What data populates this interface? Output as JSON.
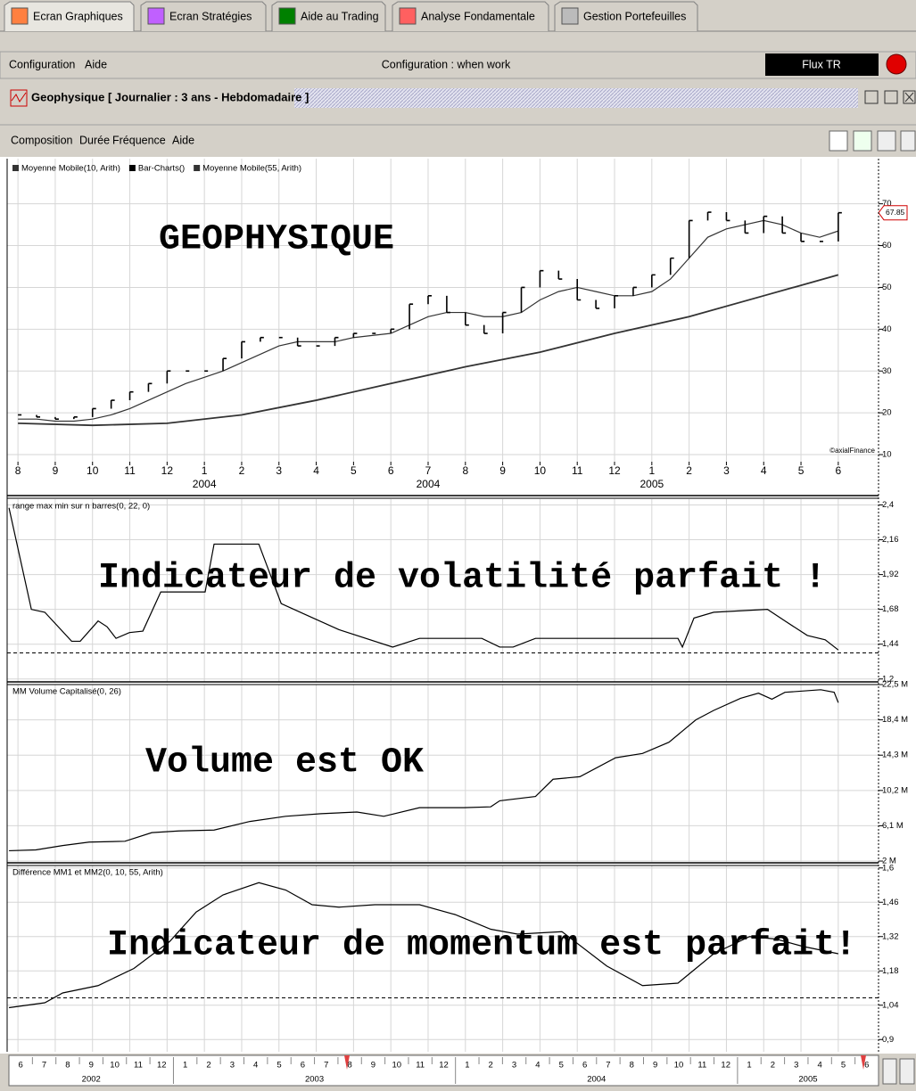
{
  "tabs": [
    "Ecran Graphiques",
    "Ecran Stratégies",
    "Aide au Trading",
    "Analyse Fondamentale",
    "Gestion Portefeuilles"
  ],
  "menu": {
    "items": [
      "Configuration",
      "Aide"
    ],
    "status": "Configuration : when work",
    "feed": "Flux TR"
  },
  "window": {
    "title": "Geophysique  [ Journalier : 3 ans - Hebdomadaire ]"
  },
  "submenu": [
    "Composition",
    "Durée",
    "Fréquence",
    "Aide"
  ],
  "chart_data": [
    {
      "type": "line",
      "annotation": "GEOPHYSIQUE",
      "credit": "©axialFinance",
      "last_price": 67.85,
      "xlim": [
        -0.29,
        23.08
      ],
      "xticks": [
        {
          "value": 0,
          "label": "8"
        },
        {
          "value": 1,
          "label": "9"
        },
        {
          "value": 2,
          "label": "10"
        },
        {
          "value": 3,
          "label": "11"
        },
        {
          "value": 4,
          "label": "12"
        },
        {
          "value": 5,
          "label": "1"
        },
        {
          "value": 6,
          "label": "2"
        },
        {
          "value": 7,
          "label": "3"
        },
        {
          "value": 8,
          "label": "4"
        },
        {
          "value": 9,
          "label": "5"
        },
        {
          "value": 10,
          "label": "6"
        },
        {
          "value": 11,
          "label": "7"
        },
        {
          "value": 12,
          "label": "8"
        },
        {
          "value": 13,
          "label": "9"
        },
        {
          "value": 14,
          "label": "10"
        },
        {
          "value": 15,
          "label": "11"
        },
        {
          "value": 16,
          "label": "12"
        },
        {
          "value": 17,
          "label": "1"
        },
        {
          "value": 18,
          "label": "2"
        },
        {
          "value": 19,
          "label": "3"
        },
        {
          "value": 20,
          "label": "4"
        },
        {
          "value": 21,
          "label": "5"
        },
        {
          "value": 22,
          "label": "6"
        }
      ],
      "x_year_labels": [
        {
          "value": 5,
          "label": "2004"
        },
        {
          "value": 11,
          "label": "2004"
        },
        {
          "value": 17,
          "label": "2005"
        }
      ],
      "ylim": [
        8.3,
        80.8
      ],
      "yticks": [
        10,
        20,
        30,
        40,
        50,
        60,
        70
      ],
      "grid": true,
      "series": [
        {
          "name": "Moyenne Mobile(10, Arith)",
          "color": "#333333",
          "x": [
            0,
            0.5,
            1,
            1.5,
            2,
            2.5,
            3,
            3.5,
            4,
            4.5,
            5,
            5.5,
            6,
            6.5,
            7,
            7.5,
            8,
            8.5,
            9,
            9.5,
            10,
            10.5,
            11,
            11.5,
            12,
            12.5,
            13,
            13.5,
            14,
            14.5,
            15,
            15.5,
            16,
            16.5,
            17,
            17.5,
            18,
            18.5,
            19,
            19.5,
            20,
            20.5,
            21,
            21.5,
            22
          ],
          "values": [
            18.5,
            18.5,
            18,
            18,
            18.5,
            19.5,
            21,
            23,
            25,
            27,
            28.5,
            30,
            32,
            34,
            36,
            37,
            37,
            37,
            38,
            38.5,
            39,
            41,
            43,
            44,
            44,
            43,
            43,
            44,
            47,
            49,
            50,
            49,
            48,
            48,
            49,
            52,
            57,
            62,
            64,
            65,
            66,
            65,
            63,
            62,
            63.5
          ]
        },
        {
          "name": "Bar-Charts()",
          "color": "#000000",
          "kind": "bars",
          "x": [
            0,
            0.5,
            1,
            1.5,
            2,
            2.5,
            3,
            3.5,
            4,
            4.5,
            5,
            5.5,
            6,
            6.5,
            7,
            7.5,
            8,
            8.5,
            9,
            9.5,
            10,
            10.5,
            11,
            11.5,
            12,
            12.5,
            13,
            13.5,
            14,
            14.5,
            15,
            15.5,
            16,
            16.5,
            17,
            17.5,
            18,
            18.5,
            19,
            19.5,
            20,
            20.5,
            21,
            21.5,
            22
          ],
          "values": [
            19.5,
            19,
            18.5,
            19,
            21,
            23,
            25,
            27,
            30,
            30,
            30,
            33,
            37,
            38,
            38,
            36,
            36,
            38,
            39,
            39,
            40,
            46,
            48,
            44,
            41,
            39,
            44,
            50,
            54,
            52,
            47,
            45,
            48,
            50,
            53,
            57,
            66,
            68,
            66,
            63,
            67,
            63,
            61,
            61,
            67.85
          ]
        },
        {
          "name": "Moyenne Mobile(55, Arith)",
          "color": "#333333",
          "x": [
            0,
            2,
            4,
            6,
            8,
            10,
            12,
            14,
            16,
            18,
            20,
            22
          ],
          "values": [
            17.5,
            17,
            17.5,
            19.5,
            23,
            27,
            31,
            34.5,
            39,
            43,
            48,
            53
          ]
        }
      ]
    },
    {
      "type": "line",
      "title": "range max min sur n barres(0, 22, 0)",
      "annotation": "Indicateur de volatilité parfait !",
      "xlim": [
        -0.29,
        23.08
      ],
      "ylim": [
        1.18,
        2.44
      ],
      "yticks": [
        {
          "value": 2.4,
          "label": "2,4"
        },
        {
          "value": 2.16,
          "label": "2,16"
        },
        {
          "value": 1.92,
          "label": "1,92"
        },
        {
          "value": 1.68,
          "label": "1,68"
        },
        {
          "value": 1.44,
          "label": "1,44"
        },
        {
          "value": 1.2,
          "label": "1,2"
        }
      ],
      "grid": true,
      "reference": 1.38,
      "series": [
        {
          "color": "#000000",
          "x": [
            -0.24,
            0.36,
            0.72,
            1.44,
            1.67,
            2.15,
            2.39,
            2.63,
            2.99,
            3.35,
            3.83,
            5.02,
            5.26,
            6.46,
            7.06,
            7.66,
            8.61,
            10.05,
            10.77,
            12.44,
            12.92,
            13.28,
            13.88,
            17.7,
            17.82,
            18.13,
            18.66,
            20.1,
            20.57,
            21.17,
            21.65,
            22
          ],
          "values": [
            2.38,
            1.68,
            1.66,
            1.46,
            1.46,
            1.6,
            1.56,
            1.48,
            1.52,
            1.53,
            1.8,
            1.8,
            2.13,
            2.13,
            1.72,
            1.65,
            1.54,
            1.42,
            1.48,
            1.48,
            1.42,
            1.42,
            1.48,
            1.48,
            1.42,
            1.62,
            1.66,
            1.68,
            1.6,
            1.5,
            1.47,
            1.4
          ]
        }
      ]
    },
    {
      "type": "line",
      "title": "MM Volume Capitalisé(0, 26)",
      "annotation": "Volume est OK",
      "xlim": [
        -0.29,
        23.08
      ],
      "ylim": [
        1.9,
        22.5
      ],
      "yticks": [
        {
          "value": 22.5,
          "label": "22,5 M"
        },
        {
          "value": 18.4,
          "label": "18,4 M"
        },
        {
          "value": 14.3,
          "label": "14,3 M"
        },
        {
          "value": 10.2,
          "label": "10,2 M"
        },
        {
          "value": 6.1,
          "label": "6,1 M"
        },
        {
          "value": 2,
          "label": "2 M"
        }
      ],
      "grid": true,
      "series": [
        {
          "color": "#000000",
          "x": [
            -0.24,
            0.48,
            1.2,
            1.91,
            2.87,
            3.59,
            4.31,
            5.26,
            6.22,
            7.18,
            8.13,
            9.09,
            9.81,
            10.77,
            11.96,
            12.68,
            12.92,
            13.88,
            14.35,
            15.07,
            16.03,
            16.75,
            17.46,
            18.18,
            18.66,
            19.38,
            19.86,
            20.22,
            20.57,
            21.53,
            21.89,
            22
          ],
          "values": [
            3.2,
            3.3,
            3.8,
            4.2,
            4.3,
            5.3,
            5.5,
            5.6,
            6.6,
            7.2,
            7.5,
            7.7,
            7.2,
            8.2,
            8.2,
            8.3,
            9,
            9.5,
            11.5,
            11.8,
            14,
            14.5,
            15.8,
            18.4,
            19.5,
            20.9,
            21.5,
            20.8,
            21.6,
            21.9,
            21.6,
            20.4
          ]
        }
      ]
    },
    {
      "type": "line",
      "title": "Différence MM1 et MM2(0, 10, 55, Arith)",
      "annotation": "Indicateur de momentum est parfait!",
      "xlim": [
        -0.29,
        23.08
      ],
      "ylim": [
        0.85,
        1.61
      ],
      "yticks": [
        {
          "value": 1.6,
          "label": "1,6"
        },
        {
          "value": 1.46,
          "label": "1,46"
        },
        {
          "value": 1.32,
          "label": "1,32"
        },
        {
          "value": 1.18,
          "label": "1,18"
        },
        {
          "value": 1.04,
          "label": "1,04"
        },
        {
          "value": 0.9,
          "label": "0,9"
        }
      ],
      "grid": true,
      "reference": 1.07,
      "series": [
        {
          "color": "#000000",
          "x": [
            -0.24,
            0.72,
            1.2,
            2.15,
            3.11,
            4.07,
            4.78,
            5.5,
            6.46,
            7.18,
            7.89,
            8.61,
            9.57,
            10.77,
            11.72,
            12.68,
            13.4,
            14.59,
            15.79,
            16.75,
            17.7,
            18.66,
            19.62,
            20.33,
            21.05,
            22
          ],
          "values": [
            1.03,
            1.05,
            1.09,
            1.12,
            1.19,
            1.3,
            1.42,
            1.49,
            1.54,
            1.51,
            1.45,
            1.44,
            1.45,
            1.45,
            1.41,
            1.35,
            1.33,
            1.34,
            1.2,
            1.12,
            1.13,
            1.25,
            1.32,
            1.31,
            1.28,
            1.25
          ]
        }
      ]
    }
  ],
  "navigator": {
    "years": [
      {
        "label": "2002",
        "months": [
          "6",
          "7",
          "8",
          "9",
          "10",
          "11",
          "12"
        ]
      },
      {
        "label": "2003",
        "months": [
          "1",
          "2",
          "3",
          "4",
          "5",
          "6",
          "7",
          "8",
          "9",
          "10",
          "11",
          "12"
        ]
      },
      {
        "label": "2004",
        "months": [
          "1",
          "2",
          "3",
          "4",
          "5",
          "6",
          "7",
          "8",
          "9",
          "10",
          "11",
          "12"
        ]
      },
      {
        "label": "2005",
        "months": [
          "1",
          "2",
          "3",
          "4",
          "5",
          "6"
        ]
      }
    ]
  }
}
